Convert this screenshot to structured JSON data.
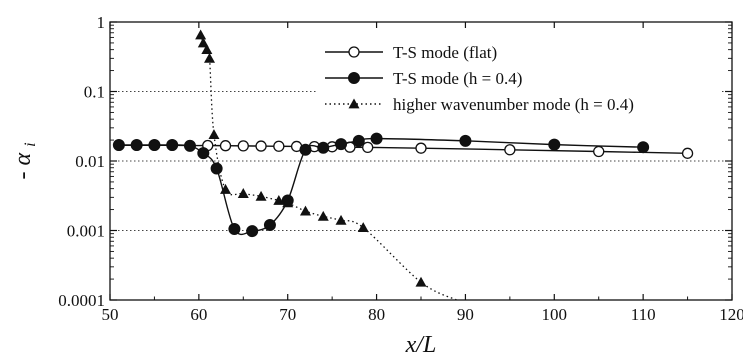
{
  "chart_data": {
    "type": "line",
    "xlabel": "x/L",
    "ylabel": "- α_i",
    "ylabel_prefix": "- ",
    "ylabel_symbol": "α",
    "ylabel_subscript": "i",
    "xlim": [
      50,
      120
    ],
    "ylim": [
      0.0001,
      1
    ],
    "yscale": "log",
    "x_ticks": [
      "50",
      "60",
      "70",
      "80",
      "90",
      "100",
      "110",
      "120"
    ],
    "y_ticks": [
      "0.0001",
      "0.001",
      "0.01",
      "0.1",
      "1"
    ],
    "grid": "dotted horizontal at decades",
    "legend_position": "top-right",
    "series": [
      {
        "name": "T-S mode (flat)",
        "marker": "open-circle",
        "line": "solid",
        "x": [
          51,
          53,
          55,
          57,
          59,
          61,
          63,
          65,
          67,
          69,
          71,
          73,
          75,
          77,
          79,
          85,
          95,
          105,
          115
        ],
        "y": [
          0.0168,
          0.0168,
          0.0168,
          0.0168,
          0.0167,
          0.0167,
          0.0166,
          0.0165,
          0.0164,
          0.0163,
          0.0162,
          0.0161,
          0.016,
          0.0158,
          0.0157,
          0.0153,
          0.0145,
          0.0137,
          0.0129
        ]
      },
      {
        "name": "T-S mode (h = 0.4)",
        "marker": "filled-circle",
        "line": "solid",
        "x": [
          51,
          53,
          55,
          57,
          59,
          60.5,
          62,
          64,
          66,
          68,
          70,
          72,
          74,
          76,
          78,
          80,
          90,
          100,
          110
        ],
        "y": [
          0.017,
          0.017,
          0.017,
          0.017,
          0.0165,
          0.013,
          0.0078,
          0.00105,
          0.00098,
          0.0012,
          0.0027,
          0.0145,
          0.0155,
          0.0175,
          0.0195,
          0.021,
          0.0195,
          0.0172,
          0.0158
        ]
      },
      {
        "name": "higher wavenumber mode (h = 0.4)",
        "marker": "filled-triangle",
        "line": "dotted",
        "x": [
          60.2,
          60.5,
          60.9,
          61.2,
          61.7,
          63,
          65,
          67,
          69,
          70,
          72,
          74,
          76,
          78.5,
          85,
          89
        ],
        "y": [
          0.65,
          0.5,
          0.4,
          0.3,
          0.024,
          0.0039,
          0.0034,
          0.0031,
          0.0027,
          0.0025,
          0.0019,
          0.0016,
          0.0014,
          0.0011,
          0.00018,
          0.0001
        ]
      }
    ]
  }
}
